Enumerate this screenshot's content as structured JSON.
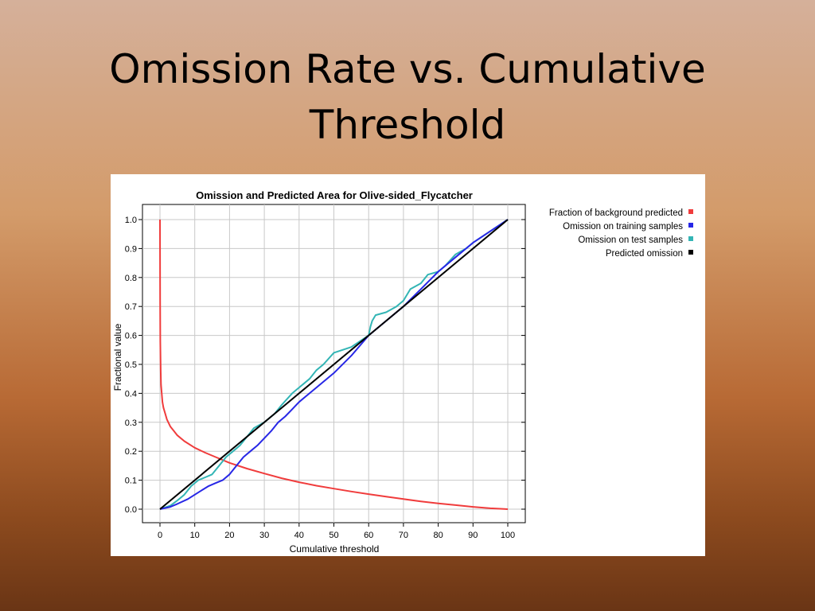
{
  "slide": {
    "title_line1": "Omission Rate vs. Cumulative",
    "title_line2": "Threshold"
  },
  "chart_data": {
    "type": "line",
    "title": "Omission and Predicted Area for Olive-sided_Flycatcher",
    "xlabel": "Cumulative threshold",
    "ylabel": "Fractional value",
    "xlim": [
      0,
      100
    ],
    "ylim": [
      0,
      1
    ],
    "xticks": [
      "0",
      "10",
      "20",
      "30",
      "40",
      "50",
      "60",
      "70",
      "80",
      "90",
      "100"
    ],
    "yticks": [
      "0.0",
      "0.1",
      "0.2",
      "0.3",
      "0.4",
      "0.5",
      "0.6",
      "0.7",
      "0.8",
      "0.9",
      "1.0"
    ],
    "grid": true,
    "legend_position": "right",
    "series": [
      {
        "name": "Fraction of background predicted",
        "color": "#f03c3c",
        "x": [
          0,
          0.05,
          0.1,
          0.2,
          0.3,
          0.5,
          0.7,
          1,
          1.5,
          2,
          3,
          4,
          5,
          7,
          10,
          13,
          16,
          20,
          25,
          30,
          35,
          40,
          45,
          50,
          55,
          60,
          65,
          70,
          75,
          80,
          85,
          90,
          95,
          100
        ],
        "y": [
          1.0,
          0.72,
          0.58,
          0.48,
          0.43,
          0.4,
          0.37,
          0.35,
          0.33,
          0.31,
          0.285,
          0.27,
          0.255,
          0.235,
          0.212,
          0.195,
          0.18,
          0.16,
          0.14,
          0.123,
          0.107,
          0.093,
          0.081,
          0.071,
          0.061,
          0.052,
          0.043,
          0.035,
          0.027,
          0.02,
          0.014,
          0.008,
          0.003,
          0.0
        ]
      },
      {
        "name": "Omission on training samples",
        "color": "#2727e6",
        "x": [
          0,
          3,
          5,
          8,
          10,
          12,
          14,
          16,
          18,
          20,
          22,
          24,
          26,
          28,
          30,
          32,
          34,
          36,
          38,
          40,
          42,
          45,
          50,
          55,
          60,
          65,
          70,
          75,
          80,
          85,
          90,
          95,
          100
        ],
        "y": [
          0.0,
          0.008,
          0.018,
          0.035,
          0.05,
          0.065,
          0.08,
          0.09,
          0.1,
          0.12,
          0.15,
          0.18,
          0.2,
          0.22,
          0.245,
          0.27,
          0.3,
          0.32,
          0.345,
          0.37,
          0.39,
          0.42,
          0.47,
          0.53,
          0.6,
          0.65,
          0.7,
          0.76,
          0.82,
          0.87,
          0.92,
          0.96,
          1.0
        ]
      },
      {
        "name": "Omission on test samples",
        "color": "#33b5b5",
        "x": [
          0,
          3,
          5,
          7,
          9,
          11,
          13,
          15,
          17,
          19,
          21,
          23,
          25,
          27,
          30,
          33,
          35,
          38,
          40,
          43,
          45,
          47,
          50,
          55,
          60,
          60.5,
          61,
          62,
          65,
          68,
          70,
          72,
          75,
          77,
          80,
          82,
          85,
          88,
          90,
          95,
          100
        ],
        "y": [
          0.0,
          0.012,
          0.03,
          0.05,
          0.08,
          0.1,
          0.11,
          0.12,
          0.15,
          0.18,
          0.2,
          0.22,
          0.25,
          0.28,
          0.3,
          0.33,
          0.36,
          0.4,
          0.42,
          0.45,
          0.48,
          0.5,
          0.54,
          0.56,
          0.6,
          0.63,
          0.65,
          0.67,
          0.68,
          0.7,
          0.72,
          0.76,
          0.78,
          0.81,
          0.82,
          0.84,
          0.88,
          0.9,
          0.92,
          0.96,
          1.0
        ]
      },
      {
        "name": "Predicted omission",
        "color": "#000000",
        "x": [
          0,
          100
        ],
        "y": [
          0.0,
          1.0
        ]
      }
    ]
  }
}
